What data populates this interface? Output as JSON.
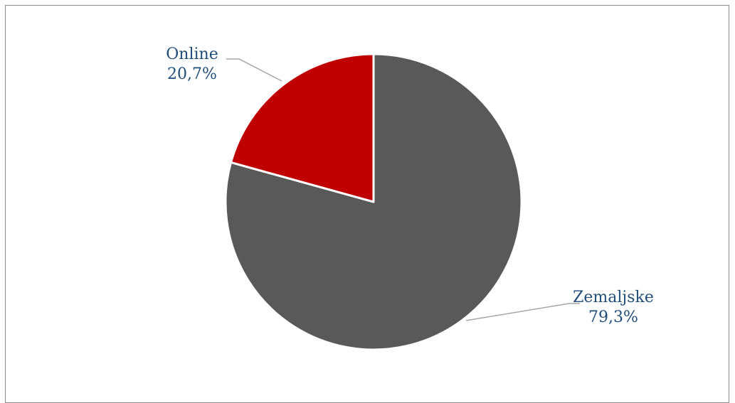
{
  "chart_data": {
    "type": "pie",
    "title": "",
    "slices": [
      {
        "label": "Zemaljske",
        "value": 79.3,
        "display": "79,3%",
        "color": "#595959"
      },
      {
        "label": "Online",
        "value": 20.7,
        "display": "20,7%",
        "color": "#c00000"
      }
    ],
    "start_angle": "top",
    "direction": "clockwise",
    "legend": "none",
    "label_color": "#1f4e79",
    "leader_line_color": "#a6a6a6"
  }
}
